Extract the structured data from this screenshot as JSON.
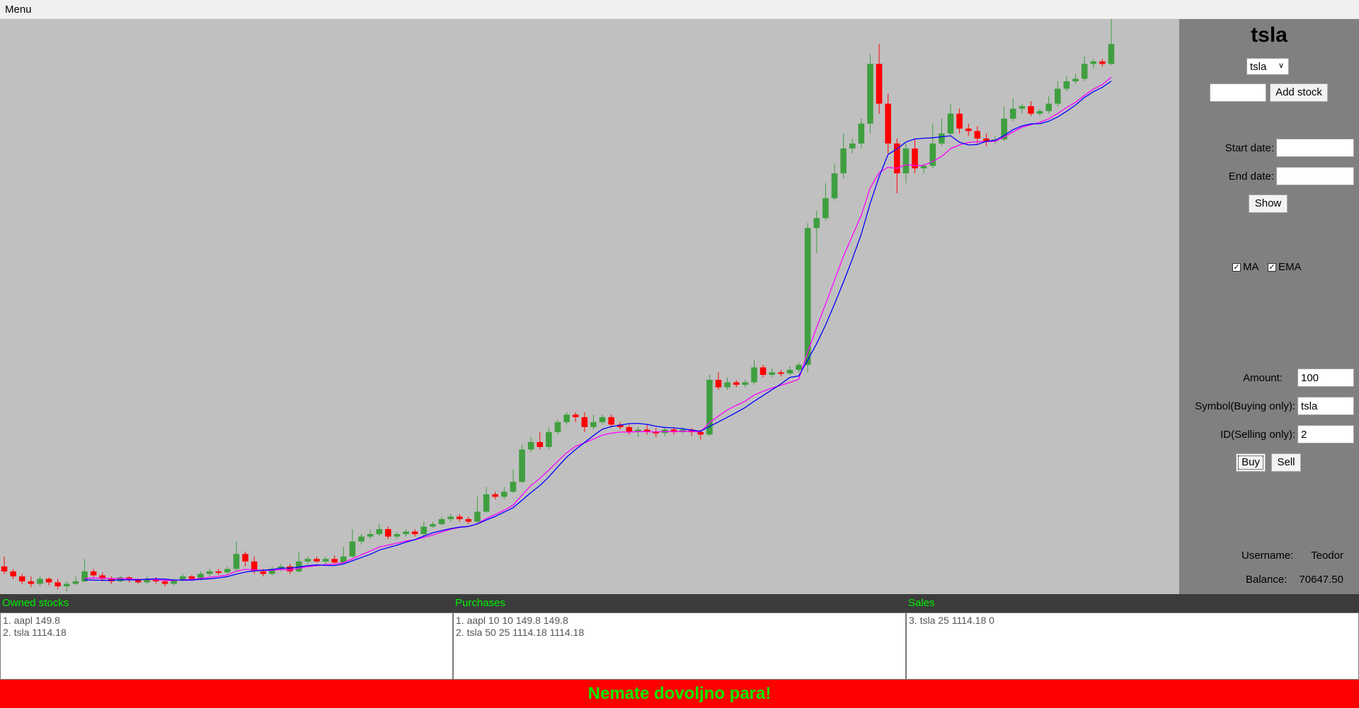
{
  "menubar": {
    "menu_label": "Menu"
  },
  "panel": {
    "stock_title": "tsla",
    "stock_select_value": "tsla",
    "add_stock_label": "Add stock",
    "new_symbol_value": "",
    "start_date_label": "Start date:",
    "start_date_value": "",
    "end_date_label": "End date:",
    "end_date_value": "",
    "show_label": "Show",
    "ma_label": "MA",
    "ema_label": "EMA",
    "amount_label": "Amount:",
    "amount_value": "100",
    "symbol_label": "Symbol(Buying only):",
    "symbol_value": "tsla",
    "id_label": "ID(Selling only):",
    "id_value": "2",
    "buy_label": "Buy",
    "sell_label": "Sell",
    "username_label": "Username:",
    "username_value": "Teodor",
    "balance_label": "Balance:",
    "balance_value": "70647.50"
  },
  "lists": {
    "owned": {
      "title": "Owned stocks",
      "items": [
        "1. aapl 149.8",
        "2. tsla 1114.18"
      ]
    },
    "purchases": {
      "title": "Purchases",
      "items": [
        "1. aapl 10 10 149.8 149.8",
        "2. tsla 50 25 1114.18 1114.18"
      ]
    },
    "sales": {
      "title": "Sales",
      "items": [
        "3. tsla 25 1114.18 0"
      ]
    }
  },
  "status": {
    "message": "Nemate dovoljno para!"
  },
  "colors": {
    "up": "#3f9f3f",
    "down": "#ff0000",
    "ma": "#0000ff",
    "ema": "#ff00ff",
    "chart_bg": "#c0c0c0",
    "panel_bg": "#808080",
    "status_bg": "#ff0000",
    "status_text": "#00ee00"
  },
  "chart_data": {
    "type": "candlestick",
    "ylim": [
      100,
      1250
    ],
    "overlays": [
      "MA",
      "EMA"
    ],
    "candles": [
      [
        150,
        140,
        170,
        135
      ],
      [
        140,
        130,
        145,
        125
      ],
      [
        130,
        120,
        135,
        115
      ],
      [
        120,
        115,
        130,
        108
      ],
      [
        115,
        125,
        130,
        110
      ],
      [
        125,
        118,
        128,
        112
      ],
      [
        118,
        110,
        125,
        105
      ],
      [
        110,
        115,
        120,
        100
      ],
      [
        115,
        120,
        130,
        112
      ],
      [
        120,
        140,
        165,
        118
      ],
      [
        140,
        132,
        145,
        128
      ],
      [
        132,
        125,
        138,
        120
      ],
      [
        125,
        120,
        130,
        115
      ],
      [
        120,
        128,
        132,
        118
      ],
      [
        128,
        122,
        130,
        118
      ],
      [
        122,
        118,
        126,
        115
      ],
      [
        118,
        125,
        130,
        115
      ],
      [
        125,
        120,
        128,
        116
      ],
      [
        120,
        115,
        125,
        110
      ],
      [
        115,
        122,
        126,
        112
      ],
      [
        122,
        130,
        135,
        120
      ],
      [
        130,
        125,
        133,
        122
      ],
      [
        125,
        135,
        140,
        122
      ],
      [
        135,
        140,
        145,
        130
      ],
      [
        140,
        138,
        145,
        133
      ],
      [
        138,
        145,
        150,
        135
      ],
      [
        145,
        175,
        200,
        140
      ],
      [
        175,
        160,
        180,
        150
      ],
      [
        160,
        140,
        170,
        135
      ],
      [
        140,
        135,
        145,
        130
      ],
      [
        135,
        145,
        150,
        132
      ],
      [
        145,
        150,
        155,
        140
      ],
      [
        150,
        140,
        155,
        135
      ],
      [
        140,
        160,
        180,
        138
      ],
      [
        160,
        165,
        170,
        155
      ],
      [
        165,
        160,
        170,
        158
      ],
      [
        160,
        165,
        170,
        155
      ],
      [
        165,
        158,
        172,
        155
      ],
      [
        158,
        170,
        190,
        155
      ],
      [
        170,
        200,
        225,
        168
      ],
      [
        200,
        210,
        215,
        195
      ],
      [
        210,
        215,
        225,
        205
      ],
      [
        215,
        225,
        235,
        210
      ],
      [
        225,
        210,
        230,
        205
      ],
      [
        210,
        215,
        220,
        205
      ],
      [
        215,
        220,
        225,
        210
      ],
      [
        220,
        215,
        225,
        210
      ],
      [
        215,
        230,
        240,
        212
      ],
      [
        230,
        235,
        240,
        228
      ],
      [
        235,
        245,
        250,
        232
      ],
      [
        245,
        250,
        255,
        240
      ],
      [
        250,
        245,
        255,
        240
      ],
      [
        245,
        240,
        250,
        235
      ],
      [
        240,
        260,
        290,
        238
      ],
      [
        260,
        295,
        310,
        258
      ],
      [
        295,
        290,
        300,
        285
      ],
      [
        290,
        300,
        310,
        285
      ],
      [
        300,
        320,
        345,
        298
      ],
      [
        320,
        385,
        395,
        318
      ],
      [
        385,
        400,
        410,
        380
      ],
      [
        400,
        390,
        420,
        385
      ],
      [
        390,
        420,
        430,
        385
      ],
      [
        420,
        440,
        445,
        415
      ],
      [
        440,
        455,
        460,
        435
      ],
      [
        455,
        450,
        460,
        440
      ],
      [
        450,
        430,
        460,
        420
      ],
      [
        430,
        440,
        455,
        425
      ],
      [
        440,
        450,
        455,
        435
      ],
      [
        450,
        435,
        455,
        430
      ],
      [
        435,
        430,
        440,
        425
      ],
      [
        430,
        420,
        435,
        415
      ],
      [
        420,
        425,
        430,
        410
      ],
      [
        425,
        420,
        435,
        415
      ],
      [
        420,
        418,
        428,
        410
      ],
      [
        418,
        425,
        430,
        412
      ],
      [
        425,
        420,
        430,
        415
      ],
      [
        420,
        425,
        430,
        418
      ],
      [
        425,
        420,
        428,
        412
      ],
      [
        420,
        415,
        425,
        405
      ],
      [
        415,
        525,
        535,
        412
      ],
      [
        525,
        510,
        540,
        505
      ],
      [
        510,
        520,
        530,
        505
      ],
      [
        520,
        515,
        525,
        510
      ],
      [
        515,
        520,
        525,
        510
      ],
      [
        520,
        550,
        565,
        515
      ],
      [
        550,
        535,
        555,
        530
      ],
      [
        535,
        540,
        548,
        530
      ],
      [
        540,
        538,
        545,
        532
      ],
      [
        538,
        545,
        552,
        535
      ],
      [
        545,
        555,
        560,
        540
      ],
      [
        555,
        830,
        840,
        540
      ],
      [
        830,
        850,
        865,
        780
      ],
      [
        850,
        890,
        920,
        845
      ],
      [
        890,
        940,
        960,
        885
      ],
      [
        940,
        990,
        1020,
        930
      ],
      [
        990,
        1000,
        1010,
        980
      ],
      [
        1000,
        1040,
        1050,
        990
      ],
      [
        1040,
        1160,
        1180,
        1020
      ],
      [
        1160,
        1080,
        1200,
        1060
      ],
      [
        1080,
        1000,
        1100,
        980
      ],
      [
        1000,
        940,
        1010,
        900
      ],
      [
        940,
        990,
        1000,
        920
      ],
      [
        990,
        950,
        1010,
        940
      ],
      [
        950,
        955,
        960,
        940
      ],
      [
        955,
        1000,
        1040,
        950
      ],
      [
        1000,
        1020,
        1050,
        995
      ],
      [
        1020,
        1060,
        1080,
        1015
      ],
      [
        1060,
        1030,
        1070,
        1020
      ],
      [
        1030,
        1025,
        1040,
        1015
      ],
      [
        1025,
        1010,
        1035,
        1000
      ],
      [
        1010,
        1005,
        1020,
        995
      ],
      [
        1005,
        1008,
        1015,
        1000
      ],
      [
        1008,
        1050,
        1075,
        1005
      ],
      [
        1050,
        1070,
        1090,
        1045
      ],
      [
        1070,
        1075,
        1080,
        1060
      ],
      [
        1075,
        1060,
        1085,
        1055
      ],
      [
        1060,
        1065,
        1070,
        1055
      ],
      [
        1065,
        1080,
        1095,
        1060
      ],
      [
        1080,
        1110,
        1125,
        1075
      ],
      [
        1110,
        1125,
        1135,
        1105
      ],
      [
        1125,
        1130,
        1140,
        1120
      ],
      [
        1130,
        1160,
        1175,
        1125
      ],
      [
        1160,
        1165,
        1170,
        1150
      ],
      [
        1165,
        1160,
        1170,
        1155
      ],
      [
        1160,
        1200,
        1250,
        1158
      ]
    ]
  }
}
